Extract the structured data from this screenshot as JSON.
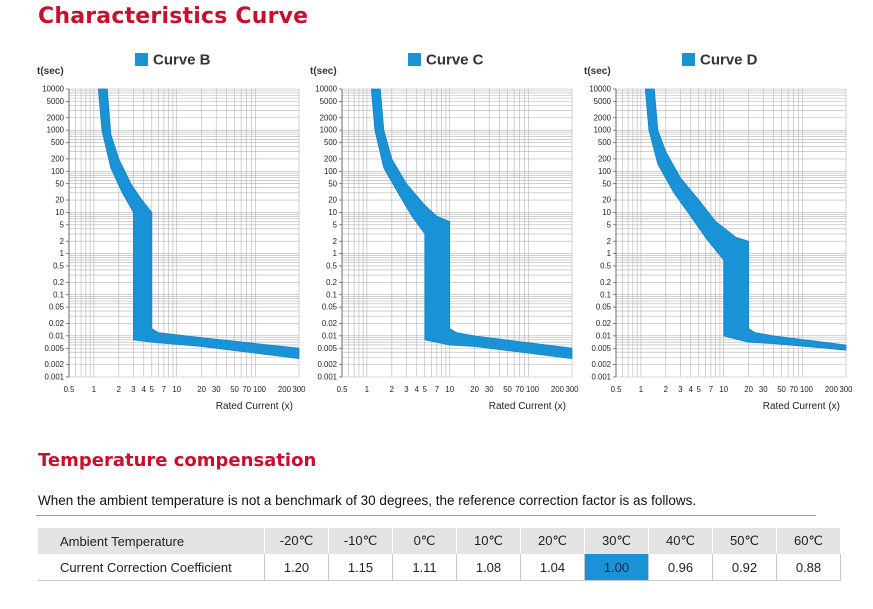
{
  "title": "Characteristics Curve",
  "chart_data": [
    {
      "type": "area",
      "legend": "Curve B",
      "ylabel": "t(sec)",
      "xlabel": "Rated Current (x)",
      "x_scale": "log",
      "y_scale": "log",
      "xlim": [
        0.5,
        300
      ],
      "ylim": [
        0.001,
        10000
      ],
      "x_ticks": [
        "0.5",
        "1",
        "2",
        "3",
        "4",
        "5",
        "7",
        "10",
        "20",
        "30",
        "50",
        "70",
        "100",
        "200",
        "300"
      ],
      "y_ticks": [
        "10000",
        "5000",
        "2000",
        "1000",
        "500",
        "200",
        "100",
        "50",
        "20",
        "10",
        "5",
        "2",
        "1",
        "0.5",
        "0.2",
        "0.1",
        "0.05",
        "0.02",
        "0.01",
        "0.005",
        "0.002",
        "0.001"
      ],
      "band": {
        "upper": [
          [
            1.45,
            10000
          ],
          [
            1.6,
            800
          ],
          [
            2,
            200
          ],
          [
            2.8,
            50
          ],
          [
            3.8,
            20
          ],
          [
            5,
            10
          ],
          [
            5,
            0.015
          ],
          [
            6,
            0.012
          ],
          [
            20,
            0.009
          ],
          [
            300,
            0.005
          ]
        ],
        "lower": [
          [
            1.13,
            10000
          ],
          [
            1.25,
            1000
          ],
          [
            1.6,
            120
          ],
          [
            2.2,
            30
          ],
          [
            3,
            10
          ],
          [
            3,
            0.008
          ],
          [
            5,
            0.007
          ],
          [
            20,
            0.0055
          ],
          [
            300,
            0.0028
          ]
        ]
      }
    },
    {
      "type": "area",
      "legend": "Curve C",
      "ylabel": "t(sec)",
      "xlabel": "Rated Current (x)",
      "x_scale": "log",
      "y_scale": "log",
      "xlim": [
        0.5,
        300
      ],
      "ylim": [
        0.001,
        10000
      ],
      "x_ticks": [
        "0.5",
        "1",
        "2",
        "3",
        "4",
        "5",
        "7",
        "10",
        "20",
        "30",
        "50",
        "70",
        "100",
        "200",
        "300"
      ],
      "y_ticks": [
        "10000",
        "5000",
        "2000",
        "1000",
        "500",
        "200",
        "100",
        "50",
        "20",
        "10",
        "5",
        "2",
        "1",
        "0.5",
        "0.2",
        "0.1",
        "0.05",
        "0.02",
        "0.01",
        "0.005",
        "0.002",
        "0.001"
      ],
      "band": {
        "upper": [
          [
            1.45,
            10000
          ],
          [
            1.6,
            1000
          ],
          [
            2,
            200
          ],
          [
            3,
            50
          ],
          [
            5,
            15
          ],
          [
            7,
            8
          ],
          [
            10,
            6
          ],
          [
            10,
            0.015
          ],
          [
            12,
            0.012
          ],
          [
            20,
            0.01
          ],
          [
            300,
            0.005
          ]
        ],
        "lower": [
          [
            1.13,
            10000
          ],
          [
            1.25,
            1000
          ],
          [
            1.6,
            120
          ],
          [
            2.5,
            25
          ],
          [
            3.5,
            8
          ],
          [
            5,
            3
          ],
          [
            5,
            0.008
          ],
          [
            10,
            0.006
          ],
          [
            20,
            0.0055
          ],
          [
            300,
            0.0028
          ]
        ]
      }
    },
    {
      "type": "area",
      "legend": "Curve D",
      "ylabel": "t(sec)",
      "xlabel": "Rated Current (x)",
      "x_scale": "log",
      "y_scale": "log",
      "xlim": [
        0.5,
        300
      ],
      "ylim": [
        0.001,
        10000
      ],
      "x_ticks": [
        "0.5",
        "1",
        "2",
        "3",
        "4",
        "5",
        "7",
        "10",
        "20",
        "30",
        "50",
        "70",
        "100",
        "200",
        "300"
      ],
      "y_ticks": [
        "10000",
        "5000",
        "2000",
        "1000",
        "500",
        "200",
        "100",
        "50",
        "20",
        "10",
        "5",
        "2",
        "1",
        "0.5",
        "0.2",
        "0.1",
        "0.05",
        "0.02",
        "0.01",
        "0.005",
        "0.002",
        "0.001"
      ],
      "band": {
        "upper": [
          [
            1.45,
            10000
          ],
          [
            1.6,
            1000
          ],
          [
            2,
            300
          ],
          [
            3,
            70
          ],
          [
            5,
            20
          ],
          [
            8,
            6
          ],
          [
            14,
            2.5
          ],
          [
            20,
            2
          ],
          [
            20,
            0.015
          ],
          [
            24,
            0.012
          ],
          [
            40,
            0.01
          ],
          [
            300,
            0.006
          ]
        ],
        "lower": [
          [
            1.13,
            10000
          ],
          [
            1.25,
            1000
          ],
          [
            1.6,
            150
          ],
          [
            2.5,
            30
          ],
          [
            4,
            8
          ],
          [
            6,
            2.5
          ],
          [
            8,
            1.2
          ],
          [
            10,
            0.7
          ],
          [
            10,
            0.01
          ],
          [
            20,
            0.007
          ],
          [
            40,
            0.0065
          ],
          [
            300,
            0.0045
          ]
        ]
      }
    }
  ],
  "temperature": {
    "title": "Temperature compensation",
    "description": "When the ambient temperature is not a benchmark of 30 degrees, the reference correction factor is as follows.",
    "row_labels": [
      "Ambient Temperature",
      "Current Correction Coefficient"
    ],
    "temperatures": [
      "-20℃",
      "-10℃",
      "0℃",
      "10℃",
      "20℃",
      "30℃",
      "40℃",
      "50℃",
      "60℃"
    ],
    "coefficients": [
      "1.20",
      "1.15",
      "1.11",
      "1.08",
      "1.04",
      "1.00",
      "0.96",
      "0.92",
      "0.88"
    ],
    "highlight_index": 5
  },
  "colors": {
    "title": "#c8102e",
    "curve_band": "#1a92d6",
    "highlight": "#1a92d6",
    "grid": "#b4b4b4",
    "header_row": "#e3e3e3"
  }
}
